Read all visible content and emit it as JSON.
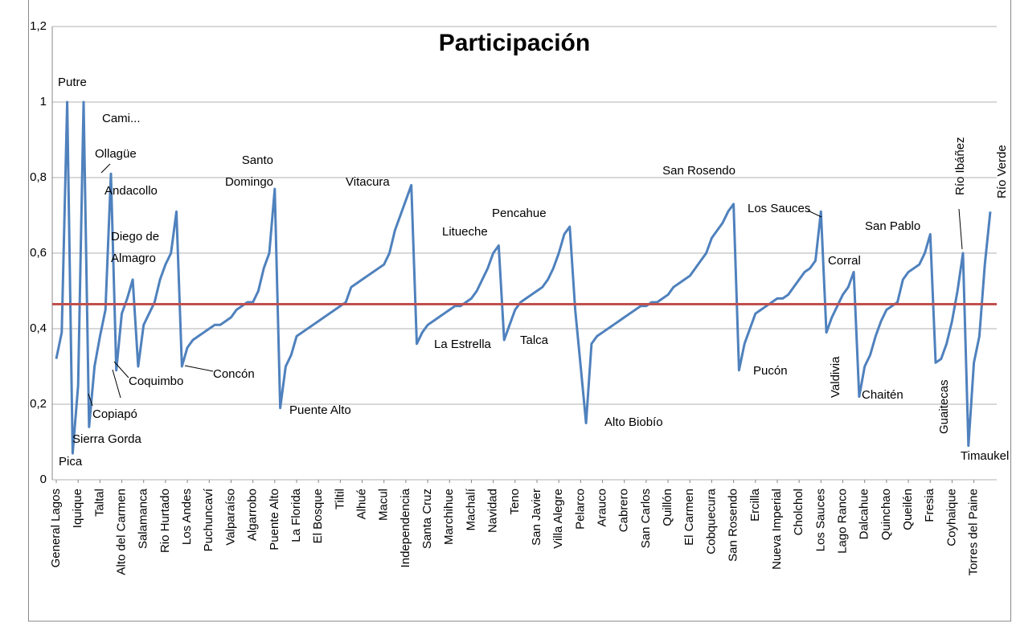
{
  "chart_data": {
    "type": "line",
    "title": "Participación",
    "categories": [
      "General Lagos",
      null,
      null,
      null,
      "Iquique",
      null,
      null,
      null,
      "Taltal",
      null,
      null,
      null,
      "Alto del Carmen",
      null,
      null,
      null,
      "Salamanca",
      null,
      null,
      null,
      "Rio Hurtado",
      null,
      null,
      null,
      "Los Andes",
      null,
      null,
      null,
      "Puchuncaví",
      null,
      null,
      null,
      "Valparaíso",
      null,
      null,
      null,
      "Algarrobo",
      null,
      null,
      null,
      "Puente Alto",
      null,
      null,
      null,
      "La Florida",
      null,
      null,
      null,
      "El Bosque",
      null,
      null,
      null,
      "Tiltil",
      null,
      null,
      null,
      "Alhué",
      null,
      null,
      null,
      "Macul",
      null,
      null,
      null,
      "Independencia",
      null,
      null,
      null,
      "Santa Cruz",
      null,
      null,
      null,
      "Marchihue",
      null,
      null,
      null,
      "Machalí",
      null,
      null,
      null,
      "Navidad",
      null,
      null,
      null,
      "Teno",
      null,
      null,
      null,
      "San Javier",
      null,
      null,
      null,
      "Villa Alegre",
      null,
      null,
      null,
      "Pelarco",
      null,
      null,
      null,
      "Arauco",
      null,
      null,
      null,
      "Cabrero",
      null,
      null,
      null,
      "San Carlos",
      null,
      null,
      null,
      "Quillón",
      null,
      null,
      null,
      "El Carmen",
      null,
      null,
      null,
      "Cobquecura",
      null,
      null,
      null,
      "San Rosendo",
      null,
      null,
      null,
      "Ercilla",
      null,
      null,
      null,
      "Nueva Imperial",
      null,
      null,
      null,
      "Cholchol",
      null,
      null,
      null,
      "Los Sauces",
      null,
      null,
      null,
      "Lago Ranco",
      null,
      null,
      null,
      "Dalcahue",
      null,
      null,
      null,
      "Quinchao",
      null,
      null,
      null,
      "Queilén",
      null,
      null,
      null,
      "Fresia",
      null,
      null,
      null,
      "Coyhaique",
      null,
      null,
      null,
      "Torres del Paine",
      null,
      null,
      null
    ],
    "series": [
      {
        "color": "#4f81bd",
        "values": [
          0.32,
          0.39,
          1.0,
          0.07,
          0.25,
          1.0,
          0.14,
          0.3,
          0.38,
          0.45,
          0.81,
          0.29,
          0.44,
          0.48,
          0.53,
          0.3,
          0.41,
          0.44,
          0.47,
          0.53,
          0.57,
          0.6,
          0.71,
          0.3,
          0.35,
          0.37,
          0.38,
          0.39,
          0.4,
          0.41,
          0.41,
          0.42,
          0.43,
          0.45,
          0.46,
          0.47,
          0.47,
          0.5,
          0.56,
          0.6,
          0.77,
          0.19,
          0.3,
          0.33,
          0.38,
          0.39,
          0.4,
          0.41,
          0.42,
          0.43,
          0.44,
          0.45,
          0.46,
          0.47,
          0.51,
          0.52,
          0.53,
          0.54,
          0.55,
          0.56,
          0.57,
          0.6,
          0.66,
          0.7,
          0.74,
          0.78,
          0.36,
          0.39,
          0.41,
          0.42,
          0.43,
          0.44,
          0.45,
          0.46,
          0.46,
          0.47,
          0.48,
          0.5,
          0.53,
          0.56,
          0.6,
          0.62,
          0.37,
          0.41,
          0.45,
          0.47,
          0.48,
          0.49,
          0.5,
          0.51,
          0.53,
          0.56,
          0.6,
          0.65,
          0.67,
          0.45,
          0.3,
          0.15,
          0.36,
          0.38,
          0.39,
          0.4,
          0.41,
          0.42,
          0.43,
          0.44,
          0.45,
          0.46,
          0.46,
          0.47,
          0.47,
          0.48,
          0.49,
          0.51,
          0.52,
          0.53,
          0.54,
          0.56,
          0.58,
          0.6,
          0.64,
          0.66,
          0.68,
          0.71,
          0.73,
          0.29,
          0.36,
          0.4,
          0.44,
          0.45,
          0.46,
          0.47,
          0.48,
          0.48,
          0.49,
          0.51,
          0.53,
          0.55,
          0.56,
          0.58,
          0.71,
          0.39,
          0.43,
          0.46,
          0.49,
          0.51,
          0.55,
          0.22,
          0.3,
          0.33,
          0.38,
          0.42,
          0.45,
          0.46,
          0.47,
          0.53,
          0.55,
          0.56,
          0.57,
          0.6,
          0.65,
          0.31,
          0.32,
          0.36,
          0.42,
          0.5,
          0.6,
          0.09,
          0.31,
          0.38,
          0.57,
          0.71
        ]
      }
    ],
    "reference_line": {
      "value": 0.465,
      "color": "#c0504d"
    },
    "annotations": [
      "Putre",
      "Pica",
      "Cami...",
      "Sierra Gorda",
      "Copiapó",
      "Ollagüe",
      [
        "Diego de",
        "Almagro"
      ],
      "Andacollo",
      "Coquimbo",
      "Concón",
      [
        "Santo",
        "Domingo"
      ],
      "Puente Alto",
      "Vitacura",
      "La Estrella",
      "Litueche",
      "Talca",
      "Pencahue",
      "Alto Biobío",
      "San Rosendo",
      "Pucón",
      "Los Sauces",
      "Corral",
      "Valdivia",
      "Chaitén",
      "San Pablo",
      "Guaitecas",
      "Río Ibáñez",
      "Timaukel",
      "Río Verde"
    ],
    "ylim": [
      0,
      1.2
    ],
    "yticks": [
      0,
      {
        "value": 0.2,
        "label": "0,2"
      },
      {
        "value": 0.4,
        "label": "0,4"
      },
      {
        "value": 0.6,
        "label": "0,6"
      },
      {
        "value": 0.8,
        "label": "0,8"
      },
      1,
      {
        "value": 1.2,
        "label": "1,2"
      }
    ],
    "grid": true
  }
}
